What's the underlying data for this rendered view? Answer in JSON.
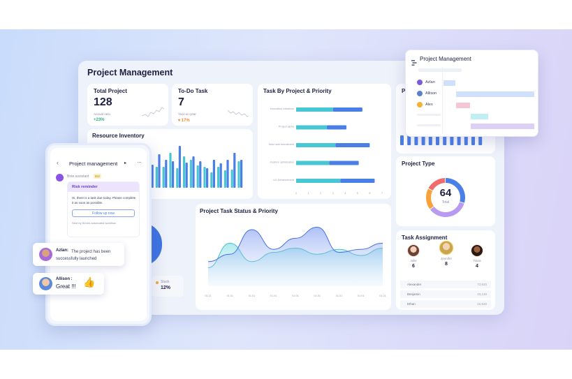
{
  "dashboard": {
    "title": "Project Management",
    "total_project": {
      "label": "Total Project",
      "value": "128",
      "sub": "Annual ratio",
      "change": "+23%"
    },
    "todo_task": {
      "label": "To-Do Task",
      "value": "7",
      "sub": "Year-on-year",
      "change": "▾ 17%"
    },
    "resource_inventory": {
      "label": "Resource Inventory"
    },
    "task_by_project": {
      "label": "Task By Project & Priority"
    },
    "partial_card": {
      "label": "P"
    },
    "project_type": {
      "label": "Project Type",
      "center_value": "64",
      "center_sub": "Total"
    },
    "task_status": {
      "label": "Project Task Status & Priority"
    },
    "task_assignment": {
      "label": "Task Assignment",
      "people": [
        {
          "name": "Julie",
          "count": "6"
        },
        {
          "name": "Jennifer",
          "count": "8"
        },
        {
          "name": "Tiana",
          "count": "4"
        }
      ],
      "rows": [
        {
          "name": "Alexander",
          "value": "73,810"
        },
        {
          "name": "Benjamin",
          "value": "23,130"
        },
        {
          "name": "Ethan",
          "value": "10,620"
        }
      ]
    },
    "stuck": {
      "label": "Stuck",
      "value": "12%"
    }
  },
  "colors": {
    "teal": "#49c6d3",
    "blue": "#4a7fe6",
    "purple": "#b99af0",
    "orange": "#f7a33a",
    "red": "#f06b6b"
  },
  "popup": {
    "title": "Project Management",
    "people": [
      "Azlan",
      "Allison",
      "Alex"
    ]
  },
  "phone": {
    "title": "Project management",
    "bot_name": "Bote assistant",
    "bot_badge": "Bot",
    "risk_title": "Risk reminder",
    "risk_text": "Hi, there is a task due today. Please complete it as soon as possible.",
    "follow_button": "Follow up now",
    "sent_by": "Sent by 8Lives automated workflow"
  },
  "messages": [
    {
      "name": "Azlan:",
      "text": "The project has been successfully launched"
    },
    {
      "name": "Allison :",
      "text": "Great !!!"
    }
  ],
  "chart_data": [
    {
      "type": "bar",
      "title": "Task By Project & Priority",
      "categories": [
        "Innovation Initiatives",
        "Project alpha",
        "New user recruitment",
        "Feature optimization",
        "UX Enhancement"
      ],
      "series": [
        {
          "values": [
            3,
            2.5,
            3.2,
            2.7,
            3.6
          ]
        },
        {
          "values": [
            2.4,
            1.6,
            2.8,
            2.4,
            2.8
          ]
        }
      ],
      "xlim": [
        0,
        7
      ]
    },
    {
      "type": "pie",
      "title": "Project Type",
      "categories": [
        "Blue",
        "Purple",
        "Orange",
        "Red"
      ],
      "values": [
        30,
        35,
        18,
        17
      ]
    },
    {
      "type": "area",
      "title": "Project Task Status & Priority",
      "x": [
        "01.11",
        "01.01",
        "01.01",
        "01.01",
        "01.01",
        "01.01",
        "01.01",
        "01.01",
        "01.01"
      ],
      "series": [
        {
          "values": [
            40,
            52,
            92,
            60,
            78,
            96,
            55,
            60,
            70
          ]
        },
        {
          "values": [
            30,
            70,
            40,
            55,
            62,
            52,
            60,
            50,
            62
          ]
        }
      ]
    },
    {
      "type": "bar",
      "title": "Resource Inventory",
      "series": [
        {
          "values": [
            42,
            30,
            30,
            50,
            28,
            45,
            40,
            32,
            30,
            22,
            30,
            25,
            26,
            38
          ]
        },
        {
          "values": [
            33,
            48,
            40,
            38,
            60,
            36,
            45,
            38,
            28,
            40,
            35,
            40,
            50,
            40
          ]
        }
      ]
    }
  ]
}
